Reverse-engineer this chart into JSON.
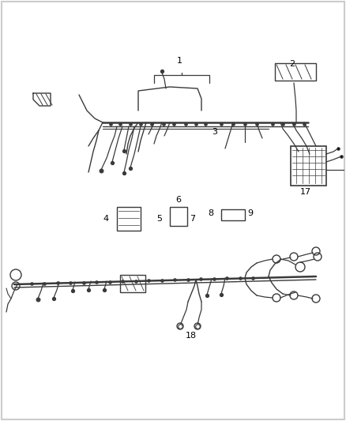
{
  "bg_color": "#ffffff",
  "wire_color": "#3a3a3a",
  "label_color": "#000000",
  "fig_width": 4.38,
  "fig_height": 5.33,
  "dpi": 100,
  "border_color": "#cccccc"
}
